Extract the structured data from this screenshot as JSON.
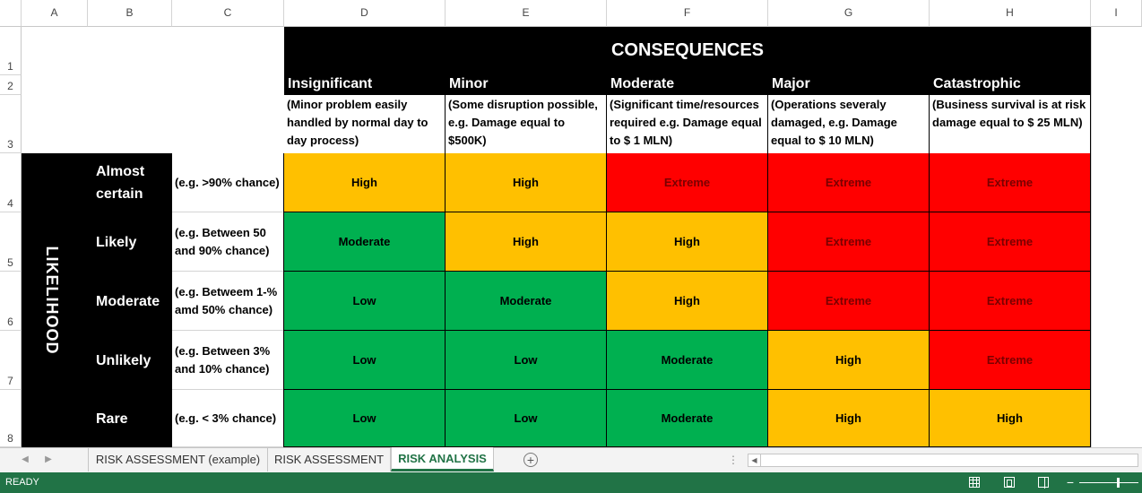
{
  "columns": [
    "A",
    "B",
    "C",
    "D",
    "E",
    "F",
    "G",
    "H",
    "I"
  ],
  "rows": [
    "1",
    "2",
    "3",
    "4",
    "5",
    "6",
    "7",
    "8"
  ],
  "matrix": {
    "title": "CONSEQUENCES",
    "side_label": "LIKELIHOOD",
    "consequences": [
      {
        "name": "Insignificant",
        "desc_lines": [
          "(Minor problem easily",
          "handled by normal day to",
          "day process)"
        ]
      },
      {
        "name": "Minor",
        "desc_lines": [
          "(Some disruption possible,",
          "e.g. Damage equal to $500K)"
        ]
      },
      {
        "name": "Moderate",
        "desc_lines": [
          "(Significant time/resources",
          "required e.g. Damage equal",
          "to $ 1 MLN)"
        ]
      },
      {
        "name": "Major",
        "desc_lines": [
          "(Operations severaly",
          "damaged, e.g. Damage",
          "equal to $ 10 MLN)"
        ]
      },
      {
        "name": "Catastrophic",
        "desc_lines": [
          "(Business survival is at risk",
          "damage equal to $ 25 MLN)"
        ]
      }
    ],
    "likelihoods": [
      {
        "name_lines": [
          "Almost",
          "certain"
        ],
        "desc_lines": [
          "(e.g. >90% chance)"
        ],
        "cells": [
          "High",
          "High",
          "Extreme",
          "Extreme",
          "Extreme"
        ]
      },
      {
        "name_lines": [
          "Likely"
        ],
        "desc_lines": [
          "(e.g. Between 50",
          "and 90% chance)"
        ],
        "cells": [
          "Moderate",
          "High",
          "High",
          "Extreme",
          "Extreme"
        ]
      },
      {
        "name_lines": [
          "Moderate"
        ],
        "desc_lines": [
          "(e.g. Betweem 1-%",
          "amd 50% chance)"
        ],
        "cells": [
          "Low",
          "Moderate",
          "High",
          "Extreme",
          "Extreme"
        ]
      },
      {
        "name_lines": [
          "Unlikely"
        ],
        "desc_lines": [
          "(e.g. Between 3%",
          "and 10% chance)"
        ],
        "cells": [
          "Low",
          "Low",
          "Moderate",
          "High",
          "Extreme"
        ]
      },
      {
        "name_lines": [
          "Rare"
        ],
        "desc_lines": [
          "(e.g. < 3% chance)"
        ],
        "cells": [
          "Low",
          "Low",
          "Moderate",
          "High",
          "High"
        ]
      }
    ],
    "level_colors": {
      "Low": "#00b050",
      "Moderate": "#00b050",
      "High": "#ffc000",
      "Extreme": "#ff0000"
    }
  },
  "sheet_tabs": [
    {
      "label": "RISK ASSESSMENT (example)",
      "active": false
    },
    {
      "label": "RISK ASSESSMENT",
      "active": false
    },
    {
      "label": "RISK ANALYSIS",
      "active": true
    }
  ],
  "status": {
    "text": "READY"
  }
}
